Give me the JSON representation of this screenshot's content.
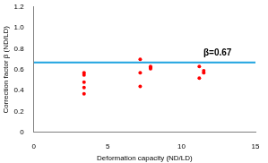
{
  "chart_data": {
    "type": "scatter",
    "x_label": "Deformation capacity (ND/LD)",
    "y_label": "Correction factor β (ND/LD)",
    "series": [
      {
        "name": "Correction factor",
        "color": "#ff0000",
        "marker": "circle",
        "x": [
          3.4,
          3.4,
          3.4,
          3.4,
          3.4,
          7.2,
          7.2,
          7.2,
          7.9,
          7.9,
          7.9,
          11.2,
          11.2,
          11.5,
          11.5
        ],
        "values": [
          0.57,
          0.55,
          0.48,
          0.43,
          0.37,
          0.7,
          0.57,
          0.44,
          0.63,
          0.62,
          0.61,
          0.63,
          0.52,
          0.59,
          0.57
        ]
      }
    ],
    "xlim": [
      0,
      15
    ],
    "xticks": [
      0,
      5,
      10,
      15
    ],
    "ylim": [
      0,
      1.2
    ],
    "yticks": [
      0,
      0.2,
      0.4,
      0.6,
      0.8,
      {
        "value": 1,
        "label": "1.0"
      },
      1.2
    ],
    "annotations": [
      {
        "type": "hline",
        "y": 0.67,
        "text": "β=0.67",
        "color": "#1fa3e0"
      }
    ],
    "grid": false,
    "legend": "none"
  }
}
